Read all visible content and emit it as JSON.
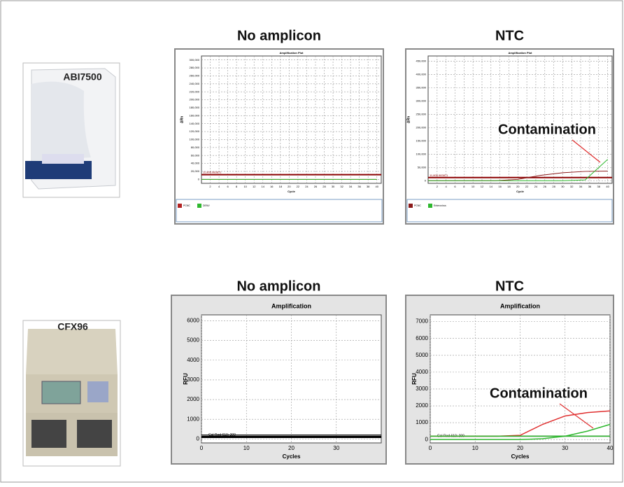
{
  "devices": [
    {
      "label": "ABI7500"
    },
    {
      "label": "CFX96"
    }
  ],
  "chart_data": [
    {
      "type": "line",
      "heading": "No amplicon",
      "title": "Amplification Plot",
      "xlabel": "Cycle",
      "ylabel": "ΔRn",
      "x": [
        0,
        5,
        10,
        15,
        20,
        25,
        30,
        35,
        40
      ],
      "series": [
        {
          "name": "PCNC",
          "color": "#b22222",
          "values": [
            0,
            0,
            0,
            0,
            0,
            0,
            0,
            0,
            0
          ]
        },
        {
          "name": "DENV",
          "color": "#2eb82e",
          "values": [
            0,
            0,
            0,
            0,
            0,
            0,
            0,
            0,
            0
          ]
        }
      ],
      "threshold": {
        "value": 11806.983871,
        "label": "11,806.983871"
      },
      "xlim": [
        0,
        41
      ],
      "ylim": [
        -10000,
        310000
      ],
      "xticks": [
        2,
        4,
        6,
        8,
        10,
        12,
        14,
        16,
        18,
        20,
        22,
        24,
        26,
        28,
        30,
        32,
        34,
        36,
        38,
        40
      ],
      "yticks": [
        0,
        {
          "value": 20000,
          "label": "20,000"
        },
        {
          "value": 40000,
          "label": "40,000"
        },
        {
          "value": 60000,
          "label": "60,000"
        },
        {
          "value": 80000,
          "label": "80,000"
        },
        {
          "value": 100000,
          "label": "100,000"
        },
        {
          "value": 120000,
          "label": "120,000"
        },
        {
          "value": 140000,
          "label": "140,000"
        },
        {
          "value": 160000,
          "label": "160,000"
        },
        {
          "value": 180000,
          "label": "180,000"
        },
        {
          "value": 200000,
          "label": "200,000"
        },
        {
          "value": 220000,
          "label": "220,000"
        },
        {
          "value": 240000,
          "label": "240,000"
        },
        {
          "value": 260000,
          "label": "260,000"
        },
        {
          "value": 280000,
          "label": "280,000"
        },
        {
          "value": 300000,
          "label": "300,000"
        }
      ],
      "grid": true,
      "legend": "bottom"
    },
    {
      "type": "line",
      "heading": "NTC",
      "title": "Amplification Plot",
      "xlabel": "Cycle",
      "ylabel": "ΔRn",
      "annotation": "Contamination",
      "x": [
        0,
        5,
        10,
        15,
        20,
        25,
        30,
        35,
        40
      ],
      "series": [
        {
          "name": "PCNC",
          "color": "#8b1a1a",
          "values": [
            0,
            0,
            0,
            0,
            5000,
            20000,
            30000,
            35000,
            36000
          ]
        },
        {
          "name": "Enterovirus",
          "color": "#2eb82e",
          "values": [
            0,
            0,
            0,
            0,
            0,
            0,
            0,
            3000,
            80000
          ]
        }
      ],
      "threshold": {
        "value": 11806.983871,
        "label": "11,806.983871"
      },
      "xlim": [
        0,
        41
      ],
      "ylim": [
        -10000,
        470000
      ],
      "xticks": [
        2,
        4,
        6,
        8,
        10,
        12,
        14,
        16,
        18,
        20,
        22,
        24,
        26,
        28,
        30,
        32,
        34,
        36,
        38,
        40
      ],
      "yticks": [
        0,
        {
          "value": 50000,
          "label": "50,000"
        },
        {
          "value": 100000,
          "label": "100,000"
        },
        {
          "value": 150000,
          "label": "150,000"
        },
        {
          "value": 200000,
          "label": "200,000"
        },
        {
          "value": 250000,
          "label": "250,000"
        },
        {
          "value": 300000,
          "label": "300,000"
        },
        {
          "value": 350000,
          "label": "350,000"
        },
        {
          "value": 400000,
          "label": "400,000"
        },
        {
          "value": 450000,
          "label": "450,000"
        }
      ],
      "grid": true,
      "legend": "bottom"
    },
    {
      "type": "line",
      "heading": "No amplicon",
      "title": "Amplification",
      "xlabel": "Cycles",
      "ylabel": "RFU",
      "x": [
        0,
        5,
        10,
        15,
        20,
        25,
        30,
        35,
        40
      ],
      "series": [
        {
          "color": "#000000",
          "values": [
            100,
            100,
            100,
            100,
            100,
            100,
            100,
            100,
            100
          ]
        }
      ],
      "threshold": {
        "value": 200,
        "label": "Cal Red 610: 200"
      },
      "xlim": [
        0,
        40
      ],
      "ylim": [
        -200,
        6300
      ],
      "xticks": [
        0,
        10,
        20,
        30
      ],
      "yticks": [
        0,
        1000,
        2000,
        3000,
        4000,
        5000,
        6000
      ],
      "grid": true
    },
    {
      "type": "line",
      "heading": "NTC",
      "title": "Amplification",
      "xlabel": "Cycles",
      "ylabel": "RFU",
      "annotation": "Contamination",
      "x": [
        0,
        5,
        10,
        15,
        20,
        25,
        30,
        35,
        40
      ],
      "series": [
        {
          "color": "#e03030",
          "values": [
            200,
            200,
            200,
            200,
            250,
            900,
            1400,
            1600,
            1700
          ]
        },
        {
          "color": "#2eb82e",
          "values": [
            0,
            0,
            0,
            0,
            0,
            50,
            200,
            500,
            900
          ]
        },
        {
          "color": "#2eb82e",
          "values": [
            200,
            200,
            200,
            200,
            200,
            200,
            200,
            200,
            200
          ]
        }
      ],
      "threshold": {
        "value": 200,
        "label": "Cal Red 610: 200"
      },
      "xlim": [
        0,
        40
      ],
      "ylim": [
        -200,
        7400
      ],
      "xticks": [
        0,
        10,
        20,
        30,
        40
      ],
      "yticks": [
        0,
        1000,
        2000,
        3000,
        4000,
        5000,
        6000,
        7000
      ],
      "grid": true
    }
  ]
}
